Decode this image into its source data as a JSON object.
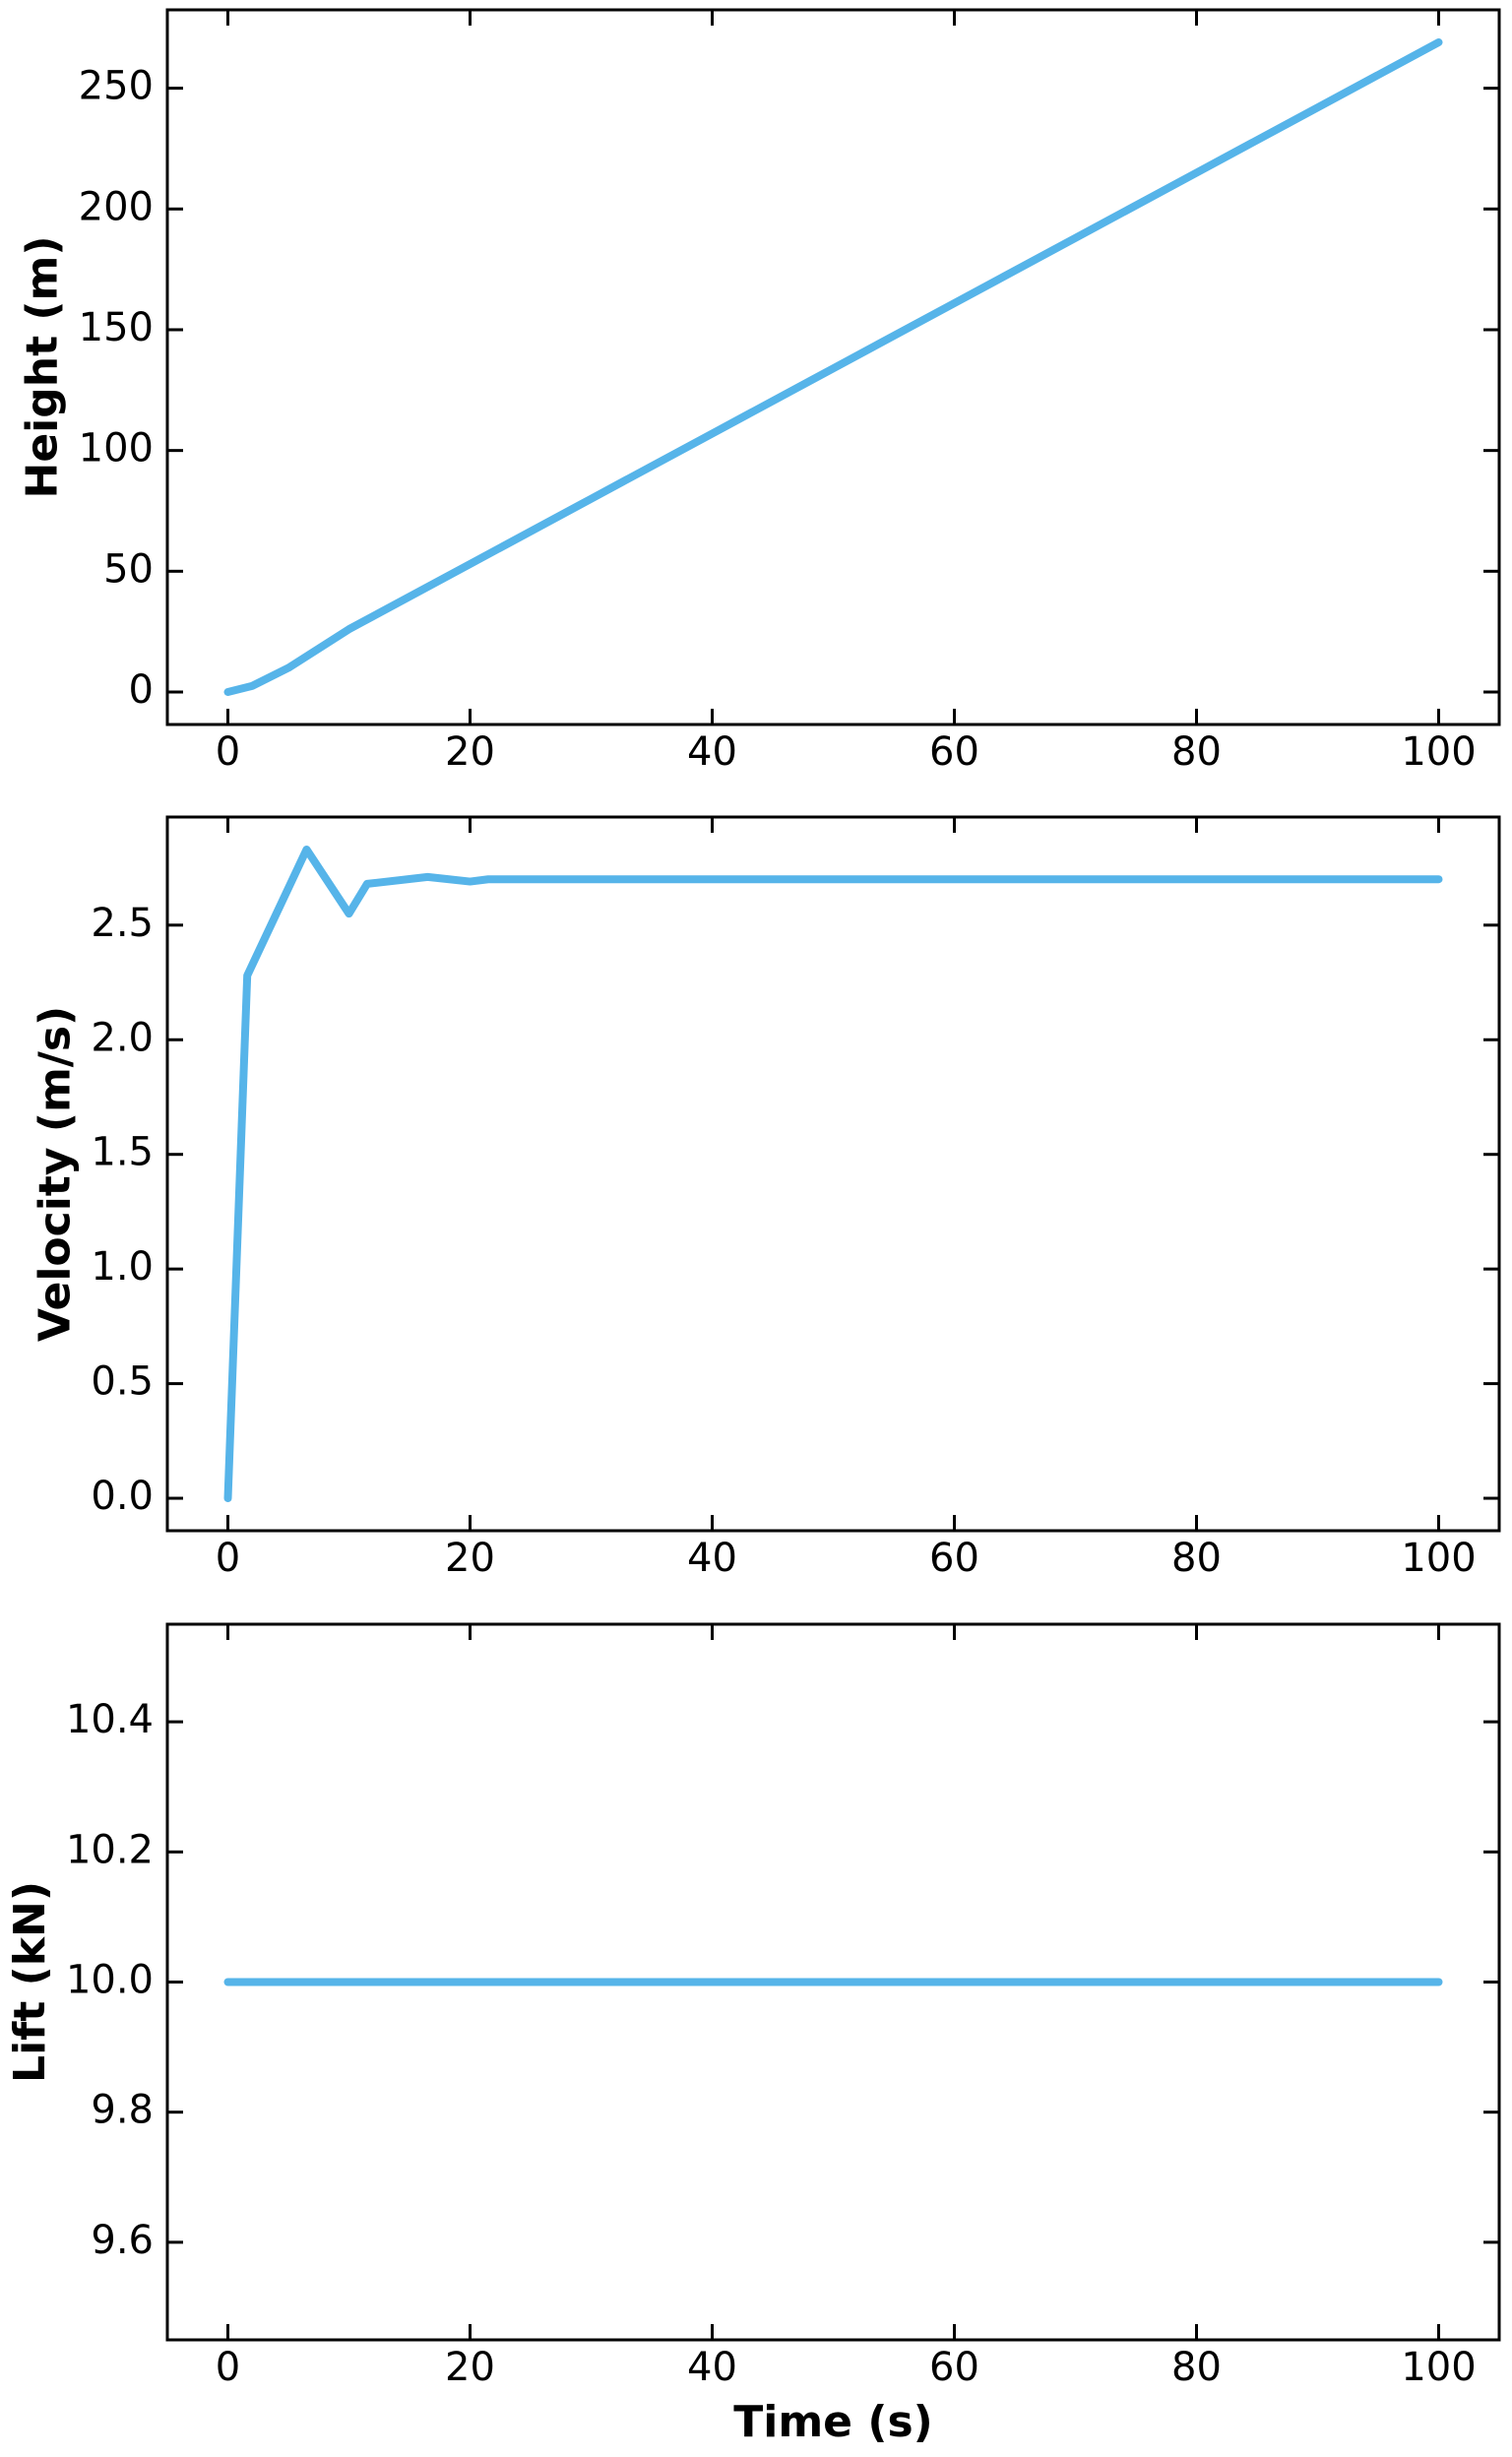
{
  "chart_data": [
    {
      "type": "line",
      "ylabel": "Height (m)",
      "x": [
        0,
        2,
        5,
        10,
        20,
        30,
        40,
        50,
        60,
        70,
        80,
        90,
        100
      ],
      "values": [
        0,
        2.5,
        10,
        26,
        53,
        80,
        107,
        134,
        161,
        188,
        215,
        242,
        269
      ],
      "color": "#56b4e9",
      "xlim": [
        -5,
        105
      ],
      "xticks": [
        0,
        20,
        40,
        60,
        80,
        100
      ],
      "ylim": [
        -13.45,
        282.45
      ],
      "yticks": [
        0,
        50,
        100,
        150,
        200,
        250
      ]
    },
    {
      "type": "line",
      "ylabel": "Velocity (m/s)",
      "x": [
        0,
        1.6,
        6.5,
        10,
        11.5,
        16.5,
        20,
        21.5,
        30,
        100
      ],
      "values": [
        0,
        2.28,
        2.83,
        2.55,
        2.68,
        2.71,
        2.69,
        2.7,
        2.7,
        2.7
      ],
      "color": "#56b4e9",
      "xlim": [
        -5,
        105
      ],
      "xticks": [
        0,
        20,
        40,
        60,
        80,
        100
      ],
      "ylim": [
        -0.1415,
        2.9715
      ],
      "yticks": [
        {
          "value": 0,
          "label": "0.0"
        },
        0.5,
        {
          "value": 1,
          "label": "1.0"
        },
        1.5,
        {
          "value": 2,
          "label": "2.0"
        },
        2.5
      ]
    },
    {
      "type": "line",
      "ylabel": "Lift (kN)",
      "xlabel": "Time (s)",
      "x": [
        0,
        100
      ],
      "values": [
        10,
        10
      ],
      "color": "#56b4e9",
      "xlim": [
        -5,
        105
      ],
      "xticks": [
        0,
        20,
        40,
        60,
        80,
        100
      ],
      "ylim": [
        9.45,
        10.55
      ],
      "yticks": [
        9.6,
        9.8,
        {
          "value": 10,
          "label": "10.0"
        },
        10.2,
        10.4
      ]
    }
  ]
}
